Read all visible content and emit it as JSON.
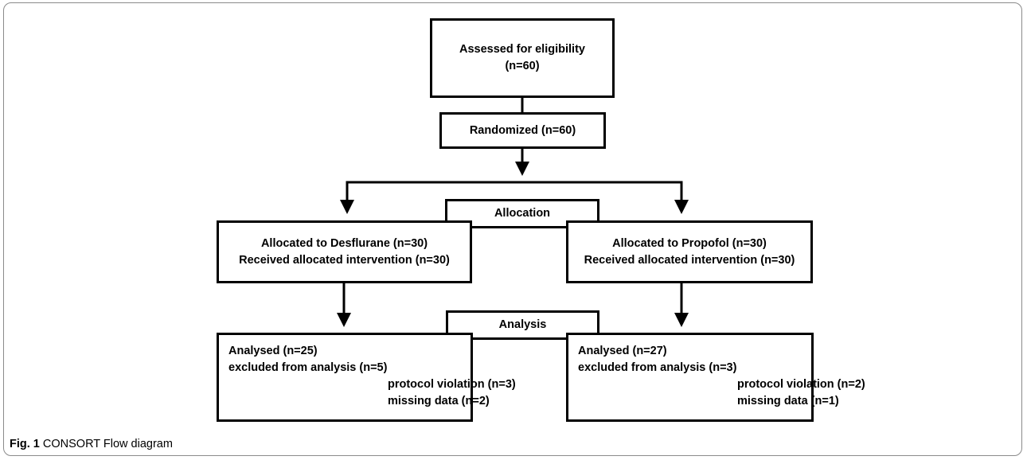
{
  "boxes": {
    "assessed": {
      "line1": "Assessed for eligibility",
      "line2": "(n=60)"
    },
    "randomized": {
      "text": "Randomized (n=60)"
    },
    "allocation": {
      "text": "Allocation"
    },
    "desflurane": {
      "line1": "Allocated to Desflurane (n=30)",
      "line2": "Received allocated intervention (n=30)"
    },
    "propofol": {
      "line1": "Allocated to Propofol (n=30)",
      "line2": "Received allocated intervention (n=30)"
    },
    "analysis": {
      "text": "Analysis"
    },
    "analysis_left": {
      "line1": "Analysed (n=25)",
      "line2": "excluded from analysis (n=5)",
      "line3": "protocol violation (n=3)",
      "line4": "missing data (n=2)"
    },
    "analysis_right": {
      "line1": "Analysed (n=27)",
      "line2": "excluded from analysis (n=3)",
      "line3": "protocol violation (n=2)",
      "line4": "missing data (n=1)"
    }
  },
  "caption": {
    "label": "Fig. 1",
    "text": "CONSORT Flow diagram"
  }
}
